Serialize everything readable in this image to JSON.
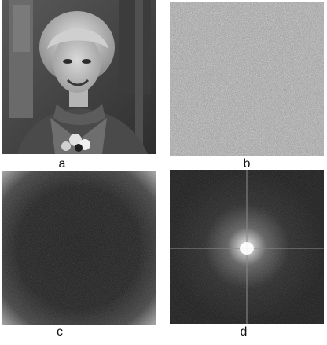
{
  "figure": {
    "panels": [
      {
        "id": "a",
        "caption": "a",
        "content": "photograph"
      },
      {
        "id": "b",
        "caption": "b",
        "content": "random-noise-texture"
      },
      {
        "id": "c",
        "caption": "c",
        "content": "noise-spectrum"
      },
      {
        "id": "d",
        "caption": "d",
        "content": "image-spectrum"
      }
    ]
  },
  "colors": {
    "page_background": "#ffffff",
    "caption_text": "#111111",
    "spectrum_background": "#141414",
    "noise_mid": "#9a9a9a"
  }
}
